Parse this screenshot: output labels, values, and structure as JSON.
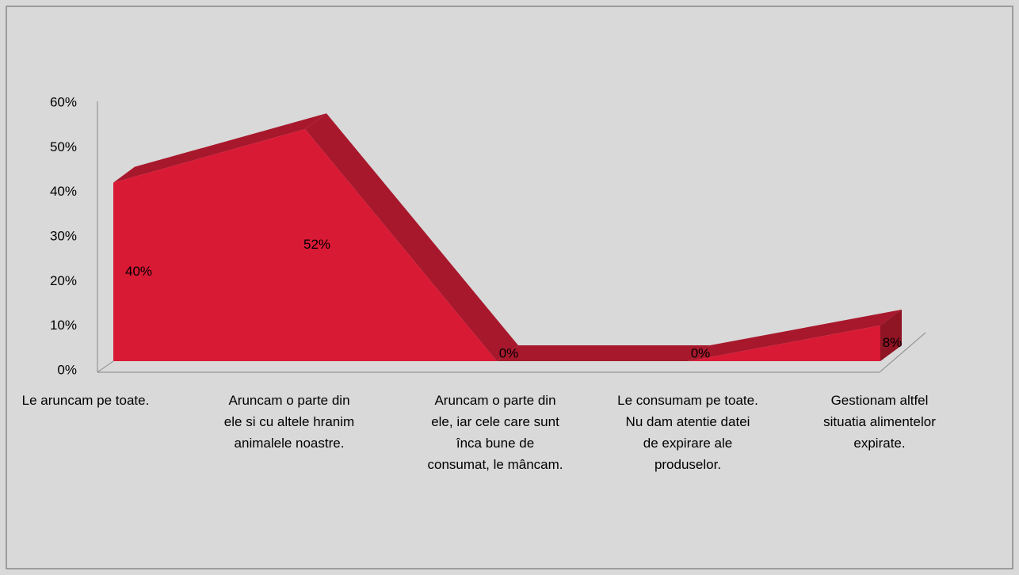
{
  "chart_data": {
    "type": "area3d",
    "categories": [
      "Le aruncam pe toate.",
      "Aruncam o parte din ele si cu altele hranim animalele noastre.",
      "Aruncam o parte din ele, iar cele care sunt înca bune de consumat, le mâncam.",
      "Le consumam pe toate. Nu dam atentie datei de expirare ale produselor.",
      "Gestionam altfel situatia alimentelor expirate."
    ],
    "values": [
      40,
      52,
      0,
      0,
      8
    ],
    "value_labels": [
      "40%",
      "52%",
      "0%",
      "0%",
      "8%"
    ],
    "color": "#d91a35",
    "ylim": [
      0,
      60
    ],
    "yticks": [
      {
        "value": 0,
        "label": "0%"
      },
      {
        "value": 10,
        "label": "10%"
      },
      {
        "value": 20,
        "label": "20%"
      },
      {
        "value": 30,
        "label": "30%"
      },
      {
        "value": 40,
        "label": "40%"
      },
      {
        "value": 50,
        "label": "50%"
      },
      {
        "value": 60,
        "label": "60%"
      }
    ]
  }
}
